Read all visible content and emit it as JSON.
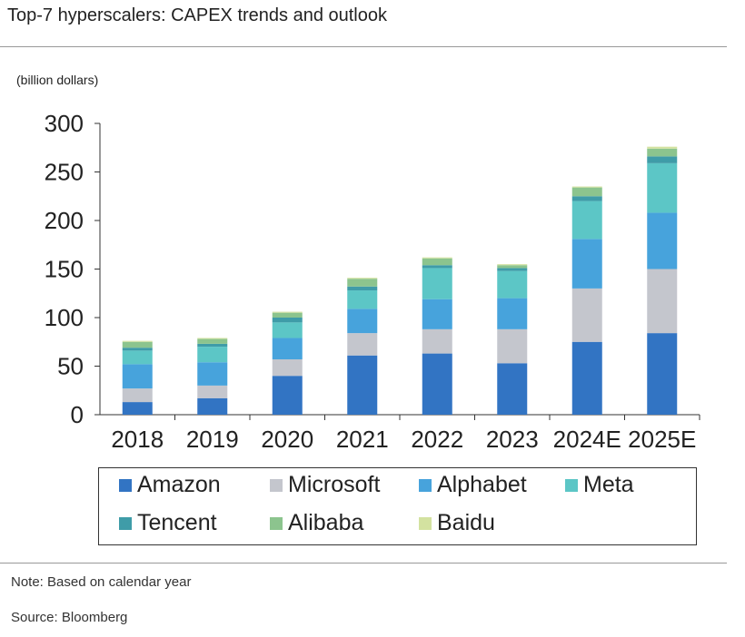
{
  "title": "Top-7 hyperscalers: CAPEX trends and outlook",
  "note": "Note: Based on calendar year",
  "source": "Source: Bloomberg",
  "chart_data": {
    "type": "bar",
    "stacked": true,
    "title": "Top-7 hyperscalers: CAPEX trends and outlook",
    "ylabel": "(billion dollars)",
    "xlabel": "",
    "ylim": [
      0,
      300
    ],
    "yticks": [
      0,
      50,
      100,
      150,
      200,
      250,
      300
    ],
    "legend_position": "bottom",
    "categories": [
      "2018",
      "2019",
      "2020",
      "2021",
      "2022",
      "2023",
      "2024E",
      "2025E"
    ],
    "series": [
      {
        "name": "Amazon",
        "color": "#3274c3",
        "values": [
          13,
          17,
          40,
          61,
          63,
          53,
          75,
          84
        ]
      },
      {
        "name": "Microsoft",
        "color": "#c4c6cd",
        "values": [
          14,
          13,
          17,
          23,
          25,
          35,
          55,
          66
        ]
      },
      {
        "name": "Alphabet",
        "color": "#47a3dc",
        "values": [
          25,
          24,
          22,
          25,
          31,
          32,
          51,
          58
        ]
      },
      {
        "name": "Meta",
        "color": "#5cc6c6",
        "values": [
          14,
          16,
          16,
          19,
          32,
          28,
          39,
          51
        ]
      },
      {
        "name": "Tencent",
        "color": "#3f9ca8",
        "values": [
          3,
          3,
          5,
          4,
          3,
          3,
          5,
          7
        ]
      },
      {
        "name": "Alibaba",
        "color": "#8cc48e",
        "values": [
          6,
          5,
          5,
          8,
          7,
          3,
          9,
          8
        ]
      },
      {
        "name": "Baidu",
        "color": "#d3e2a0",
        "values": [
          1,
          1,
          1,
          1,
          1,
          1,
          1,
          2
        ]
      }
    ]
  }
}
